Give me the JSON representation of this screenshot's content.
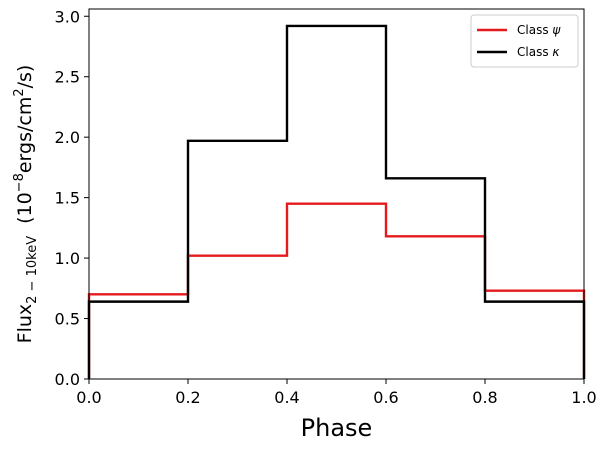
{
  "chart_data": {
    "type": "line",
    "drawstyle": "steps",
    "xlabel": "Phase",
    "ylabel": {
      "base": "Flux",
      "subscript": "2 − 10keV",
      "units_prefix": "(10",
      "units_exp1": "−8",
      "units_mid": "ergs/cm",
      "units_exp2": "2",
      "units_suffix": "/s)"
    },
    "xlim": [
      0.0,
      1.0
    ],
    "ylim": [
      0.0,
      3.06
    ],
    "xticks": [
      0.0,
      0.2,
      0.4,
      0.6,
      0.8,
      1.0
    ],
    "xtick_labels": [
      "0.0",
      "0.2",
      "0.4",
      "0.6",
      "0.8",
      "1.0"
    ],
    "yticks": [
      0.0,
      0.5,
      1.0,
      1.5,
      2.0,
      2.5,
      3.0
    ],
    "ytick_labels": [
      "0.0",
      "0.5",
      "1.0",
      "1.5",
      "2.0",
      "2.5",
      "3.0"
    ],
    "bin_edges": [
      0.0,
      0.2,
      0.4,
      0.6,
      0.8,
      1.0
    ],
    "series": [
      {
        "name": "Class ψ",
        "name_base": "Class ",
        "name_symbol": "ψ",
        "color": "#e41a1c",
        "values": [
          0.7,
          1.02,
          1.45,
          1.18,
          0.73
        ]
      },
      {
        "name": "Class κ",
        "name_base": "Class ",
        "name_symbol": "κ",
        "color": "#000000",
        "values": [
          0.64,
          1.97,
          2.92,
          1.66,
          0.64
        ]
      }
    ],
    "legend_position": "top-right",
    "grid": false
  }
}
